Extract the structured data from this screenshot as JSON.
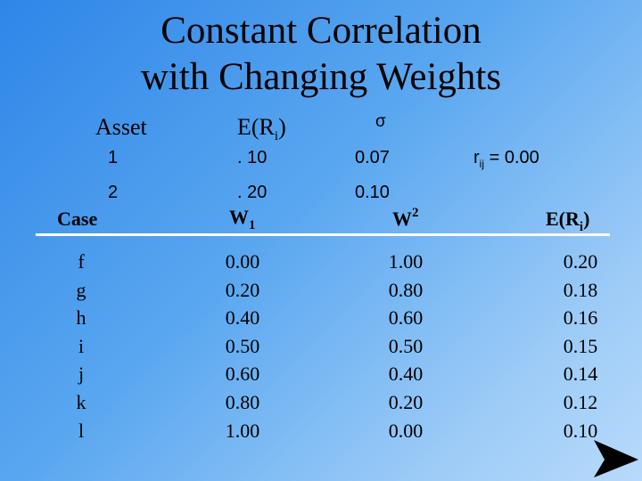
{
  "title_line1": "Constant Correlation",
  "title_line2": "with Changing Weights",
  "asset_table": {
    "header_asset": "Asset",
    "header_er_main": "E(R",
    "header_er_sub": "i",
    "header_er_close": ")",
    "header_sigma": "σ",
    "rows": [
      {
        "asset": "1",
        "er": ". 10",
        "sigma": "0.07"
      },
      {
        "asset": "2",
        "er": ". 20",
        "sigma": "0.10"
      }
    ],
    "correlation_r": "r",
    "correlation_sub": "ij",
    "correlation_value": "= 0.00"
  },
  "weights_table": {
    "header_case": "Case",
    "header_w1_main": "W",
    "header_w1_sub": "1",
    "header_w2_main": "W",
    "header_w2_sup": "2",
    "header_er_main": "E(R",
    "header_er_sub": "i",
    "header_er_close": ")",
    "cases": [
      "f",
      "g",
      "h",
      "i",
      "j",
      "k",
      "l"
    ],
    "w1": [
      "0.00",
      "0.20",
      "0.40",
      "0.50",
      "0.60",
      "0.80",
      "1.00"
    ],
    "w2": [
      "1.00",
      "0.80",
      "0.60",
      "0.50",
      "0.40",
      "0.20",
      "0.00"
    ],
    "er": [
      "0.20",
      "0.18",
      "0.16",
      "0.15",
      "0.14",
      "0.12",
      "0.10"
    ]
  },
  "colors": {
    "background_start": "#2f86e8",
    "background_end": "#b8dafb",
    "rule": "#ffffff"
  },
  "icons": {
    "next": "arrow-right-icon"
  }
}
